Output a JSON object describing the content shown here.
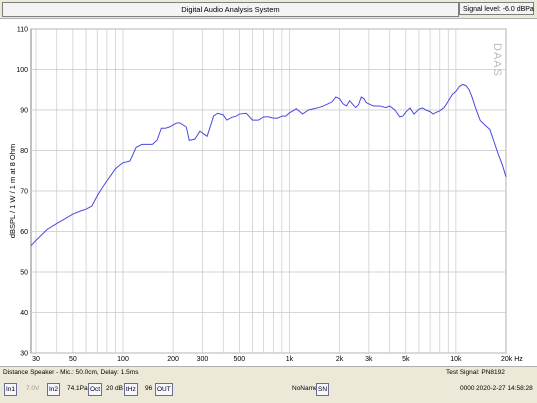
{
  "window": {
    "title": "Digital Audio Analysis System",
    "signal_level": "Signal level: -6.0 dBPa",
    "print_icon": "printer-icon"
  },
  "chart_data": {
    "type": "line",
    "title": "",
    "xlabel": "",
    "ylabel": "dBSPL / 1 W / 1 m at 8 Ohm",
    "watermark": "DAAS",
    "x_scale": "log",
    "xlim": [
      28,
      20000
    ],
    "ylim": [
      30,
      110
    ],
    "grid": true,
    "line_color": "#4a4ae0",
    "y_ticks": [
      "30",
      "40",
      "50",
      "60",
      "70",
      "80",
      "90",
      "100",
      "110"
    ],
    "x_ticks": [
      {
        "value": 30,
        "label": "30"
      },
      {
        "value": 50,
        "label": "50"
      },
      {
        "value": 100,
        "label": "100"
      },
      {
        "value": 200,
        "label": "200"
      },
      {
        "value": 300,
        "label": "300"
      },
      {
        "value": 500,
        "label": "500"
      },
      {
        "value": 1000,
        "label": "1k"
      },
      {
        "value": 2000,
        "label": "2k"
      },
      {
        "value": 3000,
        "label": "3k"
      },
      {
        "value": 5000,
        "label": "5k"
      },
      {
        "value": 10000,
        "label": "10k"
      },
      {
        "value": 20000,
        "label": "20k Hz"
      }
    ],
    "series": [
      {
        "x": [
          28,
          30,
          35,
          40,
          45,
          50,
          55,
          60,
          65,
          70,
          75,
          80,
          85,
          90,
          95,
          100,
          110,
          120,
          130,
          140,
          150,
          160,
          170,
          180,
          190,
          200,
          210,
          220,
          240,
          250,
          270,
          290,
          300,
          320,
          340,
          350,
          370,
          400,
          420,
          450,
          480,
          500,
          550,
          600,
          650,
          700,
          750,
          800,
          850,
          900,
          950,
          1000,
          1100,
          1200,
          1300,
          1400,
          1500,
          1600,
          1700,
          1800,
          1900,
          2000,
          2100,
          2200,
          2300,
          2400,
          2500,
          2600,
          2700,
          2800,
          2900,
          3000,
          3200,
          3500,
          3800,
          4000,
          4300,
          4600,
          4800,
          5000,
          5300,
          5600,
          6000,
          6300,
          6600,
          7000,
          7300,
          7600,
          8000,
          8500,
          9000,
          9500,
          10000,
          10500,
          11000,
          11500,
          12000,
          12500,
          13000,
          14000,
          15000,
          16000,
          17000,
          18000,
          19000,
          20000
        ],
        "y": [
          56.5,
          57.8,
          60.5,
          62.0,
          63.2,
          64.3,
          65.0,
          65.5,
          66.3,
          68.8,
          70.8,
          72.5,
          74.0,
          75.5,
          76.3,
          77.0,
          77.4,
          80.8,
          81.5,
          81.5,
          81.5,
          82.5,
          85.5,
          85.5,
          85.8,
          86.3,
          86.8,
          86.8,
          85.8,
          82.5,
          82.8,
          84.8,
          84.3,
          83.5,
          86.8,
          88.5,
          89.2,
          88.8,
          87.5,
          88.2,
          88.5,
          89.0,
          89.2,
          87.5,
          87.5,
          88.3,
          88.3,
          88.0,
          88.0,
          88.5,
          88.5,
          89.3,
          90.3,
          89.0,
          90.0,
          90.3,
          90.6,
          91.0,
          91.5,
          92.0,
          93.2,
          92.8,
          91.5,
          91.0,
          92.3,
          91.4,
          90.6,
          91.3,
          93.2,
          92.8,
          91.8,
          91.5,
          91.0,
          91.0,
          90.6,
          91.0,
          90.0,
          88.3,
          88.5,
          89.5,
          90.5,
          89.0,
          90.2,
          90.5,
          90.0,
          89.6,
          89.0,
          89.4,
          89.8,
          90.6,
          92.2,
          93.8,
          94.6,
          95.8,
          96.3,
          96.0,
          95.0,
          93.2,
          91.0,
          87.4,
          86.2,
          85.2,
          82.0,
          79.0,
          76.5,
          73.5
        ]
      }
    ]
  },
  "status": {
    "distance": "Distance Speaker - Mic.: 50.0cm, Delay: 1.5ms",
    "test_signal": "Test Signal: PN8192",
    "in1": "In1",
    "voltage": "7.0V",
    "in2": "In2",
    "pa": "74.1Pa",
    "oct": "Oct",
    "db": "20 dB",
    "tht": "tHz",
    "n96": "96",
    "out": "OUT",
    "noname": "NoName",
    "sn": "SN",
    "counter": "0000",
    "datetime": "2020-2-27   14:58:28"
  }
}
